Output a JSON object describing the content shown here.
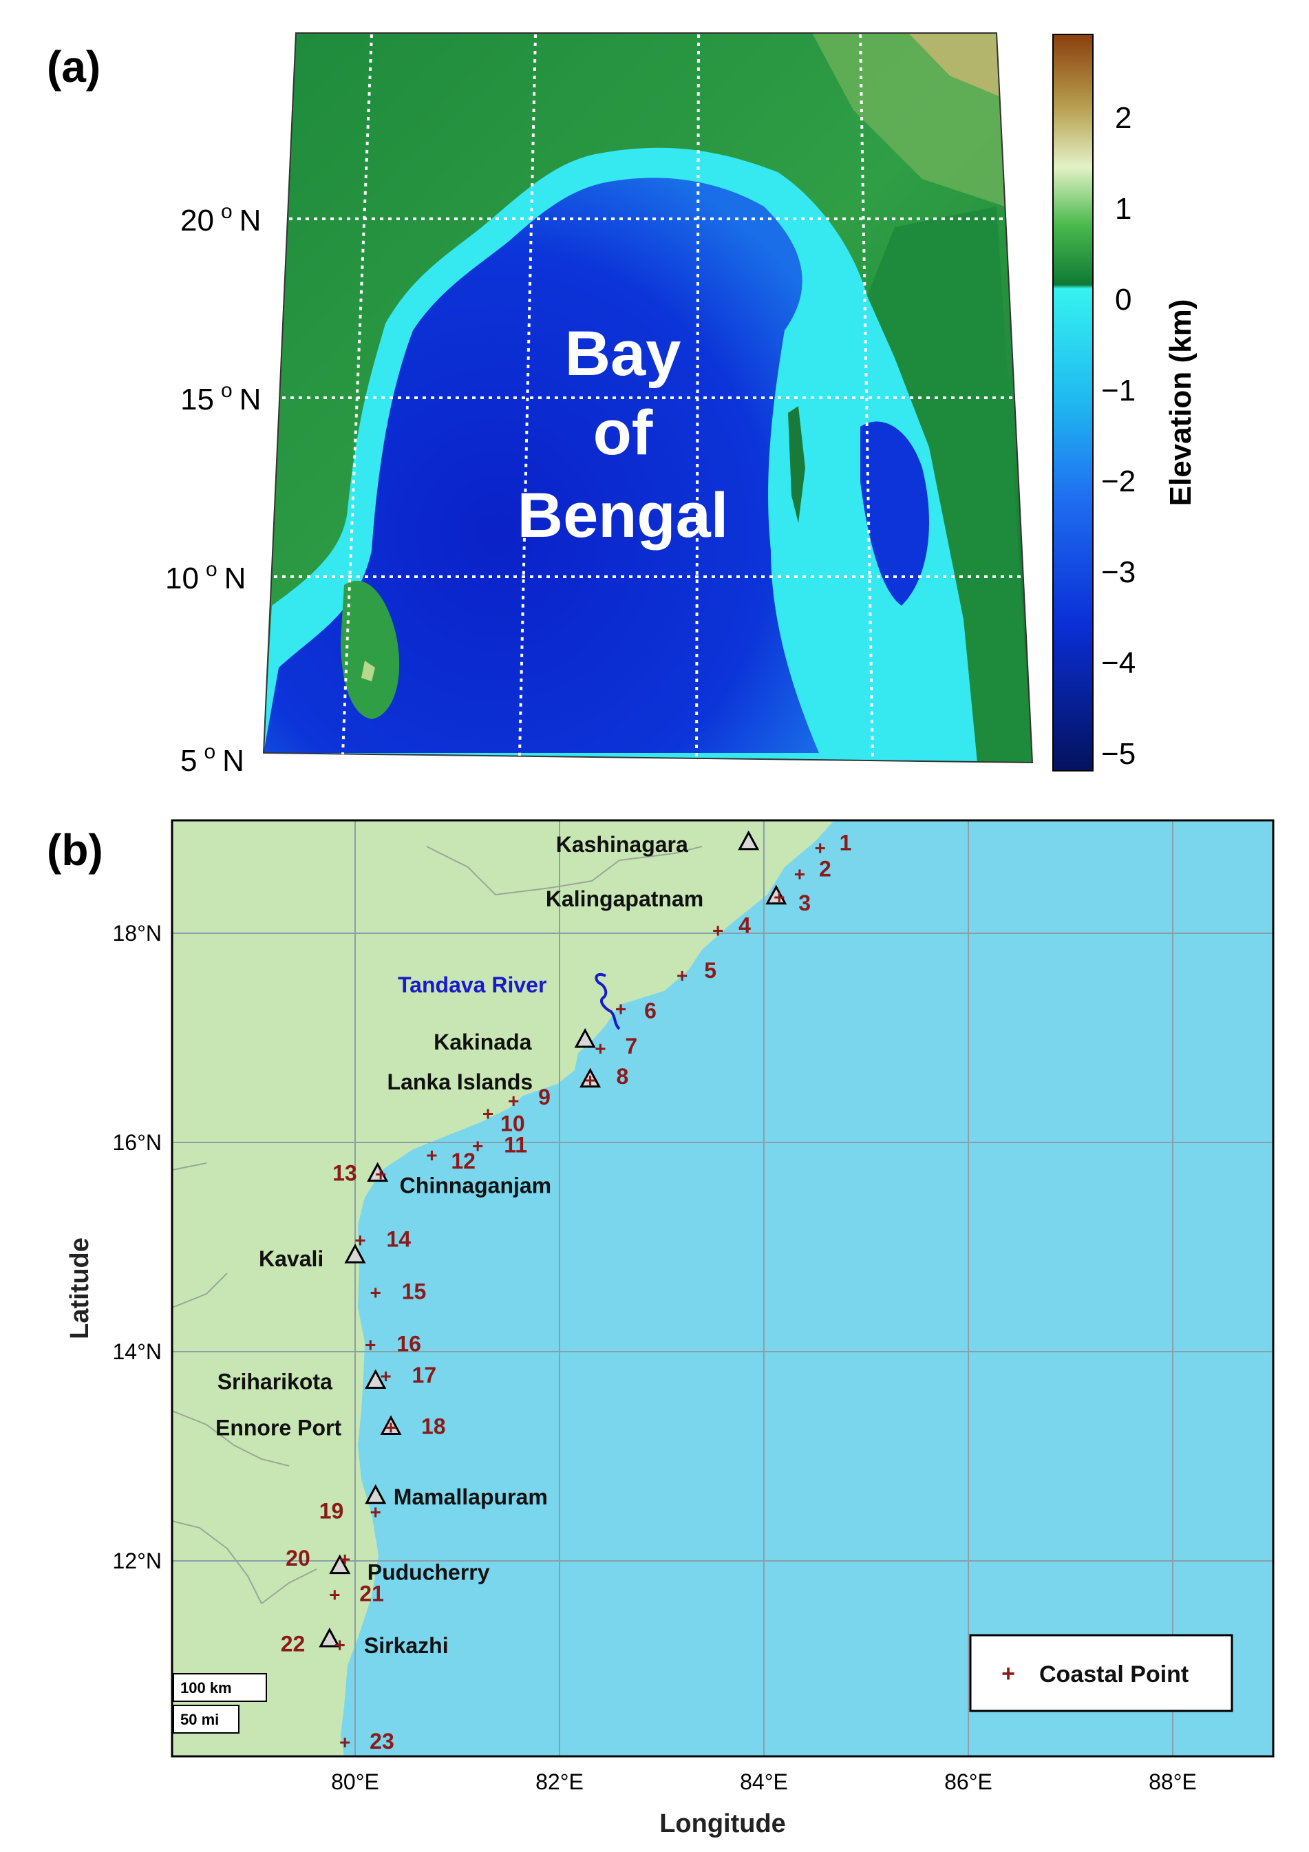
{
  "panel_a": {
    "label": "(a)",
    "region_label_lines": [
      "Bay",
      "of",
      "Bengal"
    ],
    "lat_ticks": [
      {
        "deg": "20",
        "hemi": "N"
      },
      {
        "deg": "15",
        "hemi": "N"
      },
      {
        "deg": "10",
        "hemi": "N"
      },
      {
        "deg": "5",
        "hemi": "N"
      }
    ],
    "colorbar": {
      "label": "Elevation (km)",
      "ticks": [
        "2",
        "1",
        "0",
        "−1",
        "−2",
        "−3",
        "−4",
        "−5"
      ],
      "colors": {
        "deep": "#04125e",
        "mid": "#0a2fd6",
        "shallow": "#1f8ff0",
        "shelf": "#36f2f0",
        "lowland": "#0f7a35",
        "upland": "#49b84c",
        "highland": "#e3f2c6",
        "peak": "#8b3f0c"
      }
    }
  },
  "panel_b": {
    "label": "(b)",
    "xlabel": "Longitude",
    "ylabel": "Latitude",
    "x_ticks": [
      "80°E",
      "82°E",
      "84°E",
      "86°E",
      "88°E"
    ],
    "y_ticks": [
      "18°N",
      "16°N",
      "14°N",
      "12°N"
    ],
    "land_color": "#c8e6b4",
    "sea_color": "#7ad6ec",
    "point_color": "#8b1a1a",
    "river_color": "#1a1acc",
    "river_label": "Tandava River",
    "legend_label": "Coastal Point",
    "scale_labels": [
      "100 km",
      "50 mi"
    ],
    "coastal_points": [
      {
        "id": "1",
        "lon": 84.55,
        "lat": 18.82
      },
      {
        "id": "2",
        "lon": 84.35,
        "lat": 18.57
      },
      {
        "id": "3",
        "lon": 84.15,
        "lat": 18.35
      },
      {
        "id": "4",
        "lon": 83.55,
        "lat": 18.03
      },
      {
        "id": "5",
        "lon": 83.2,
        "lat": 17.6
      },
      {
        "id": "6",
        "lon": 82.6,
        "lat": 17.28
      },
      {
        "id": "7",
        "lon": 82.4,
        "lat": 16.9
      },
      {
        "id": "8",
        "lon": 82.3,
        "lat": 16.6
      },
      {
        "id": "9",
        "lon": 81.55,
        "lat": 16.4
      },
      {
        "id": "10",
        "lon": 81.3,
        "lat": 16.28
      },
      {
        "id": "11",
        "lon": 81.2,
        "lat": 15.97
      },
      {
        "id": "12",
        "lon": 80.75,
        "lat": 15.88
      },
      {
        "id": "13",
        "lon": 80.25,
        "lat": 15.7
      },
      {
        "id": "14",
        "lon": 80.05,
        "lat": 15.07
      },
      {
        "id": "15",
        "lon": 80.2,
        "lat": 14.57
      },
      {
        "id": "16",
        "lon": 80.15,
        "lat": 14.07
      },
      {
        "id": "17",
        "lon": 80.3,
        "lat": 13.77
      },
      {
        "id": "18",
        "lon": 80.35,
        "lat": 13.28
      },
      {
        "id": "19",
        "lon": 80.2,
        "lat": 12.47
      },
      {
        "id": "20",
        "lon": 79.9,
        "lat": 12.02
      },
      {
        "id": "21",
        "lon": 79.8,
        "lat": 11.68
      },
      {
        "id": "22",
        "lon": 79.85,
        "lat": 11.2
      },
      {
        "id": "23",
        "lon": 79.9,
        "lat": 10.27
      }
    ],
    "places": [
      {
        "name": "Kashinagara",
        "lon": 83.85,
        "lat": 18.87
      },
      {
        "name": "Kalingapatnam",
        "lon": 84.12,
        "lat": 18.35
      },
      {
        "name": "Kakinada",
        "lon": 82.25,
        "lat": 16.98
      },
      {
        "name": "Lanka Islands",
        "lon": 82.3,
        "lat": 16.6
      },
      {
        "name": "Chinnaganjam",
        "lon": 80.22,
        "lat": 15.7
      },
      {
        "name": "Kavali",
        "lon": 80.0,
        "lat": 14.92
      },
      {
        "name": "Sriharikota",
        "lon": 80.2,
        "lat": 13.72
      },
      {
        "name": "Ennore Port",
        "lon": 80.35,
        "lat": 13.28
      },
      {
        "name": "Mamallapuram",
        "lon": 80.2,
        "lat": 12.62
      },
      {
        "name": "Puducherry",
        "lon": 79.85,
        "lat": 11.95
      },
      {
        "name": "Sirkazhi",
        "lon": 79.75,
        "lat": 11.25
      }
    ]
  }
}
